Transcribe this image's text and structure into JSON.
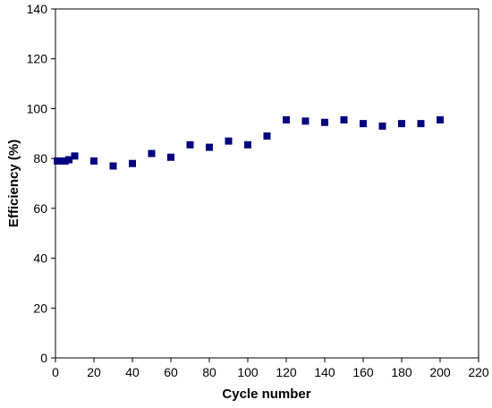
{
  "chart_data": {
    "type": "scatter",
    "title": "",
    "xlabel": "Cycle number",
    "ylabel": "Efficiency (%)",
    "xlim": [
      0,
      220
    ],
    "ylim": [
      0,
      140
    ],
    "xticks": [
      0,
      20,
      40,
      60,
      80,
      100,
      120,
      140,
      160,
      180,
      200,
      220
    ],
    "yticks": [
      0,
      20,
      40,
      60,
      80,
      100,
      120,
      140
    ],
    "grid": false,
    "legend": "none",
    "marker": "square",
    "marker_color": "#000080",
    "series": [
      {
        "x": [
          1,
          3,
          5,
          7,
          10,
          20,
          30,
          40,
          50,
          60,
          70,
          80,
          90,
          100,
          110,
          120,
          130,
          140,
          150,
          160,
          170,
          180,
          190,
          200
        ],
        "y": [
          79,
          79,
          79,
          79.5,
          81,
          79,
          77,
          78,
          82,
          80.5,
          85.5,
          84.5,
          87,
          85.5,
          89,
          95.5,
          95,
          94.5,
          95.5,
          94,
          93,
          94,
          94,
          95.5
        ]
      }
    ]
  }
}
